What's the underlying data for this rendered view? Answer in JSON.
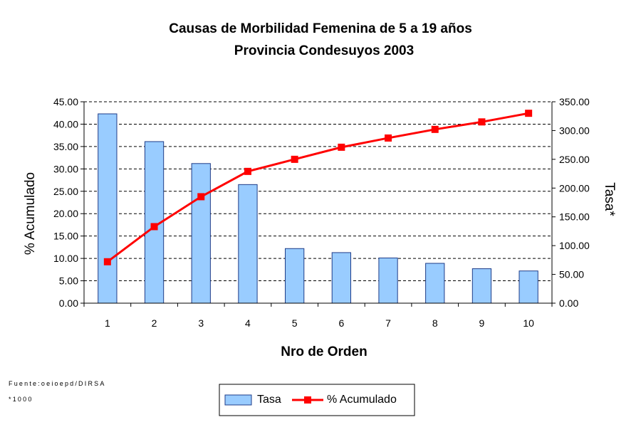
{
  "chart_data": {
    "type": "bar+line",
    "title": "Causas de Morbilidad Femenina de 5 a 19 años",
    "subtitle": "Provincia Condesuyos 2003",
    "xlabel": "Nro de Orden",
    "ylabel_left": "% Acumulado",
    "ylabel_right": "Tasa*",
    "categories": [
      "1",
      "2",
      "3",
      "4",
      "5",
      "6",
      "7",
      "8",
      "9",
      "10"
    ],
    "ylim_left": [
      0,
      45
    ],
    "yticks_left": [
      "0.00",
      "5.00",
      "10.00",
      "15.00",
      "20.00",
      "25.00",
      "30.00",
      "35.00",
      "40.00",
      "45.00"
    ],
    "ylim_right": [
      0,
      350
    ],
    "yticks_right": [
      "0.00",
      "50.00",
      "100.00",
      "150.00",
      "200.00",
      "250.00",
      "300.00",
      "350.00"
    ],
    "series": [
      {
        "name": "Tasa",
        "type": "bar",
        "axis": "left",
        "color": "#99CCFF",
        "edge": "#1F3C88",
        "values": [
          42.3,
          36.1,
          31.2,
          26.5,
          12.2,
          11.3,
          10.1,
          8.9,
          7.7,
          7.2
        ]
      },
      {
        "name": "% Acumulado",
        "type": "line",
        "axis": "right",
        "color": "#FF0000",
        "marker": "square",
        "values": [
          72,
          133,
          185,
          229,
          250,
          271,
          287,
          302,
          315,
          330
        ]
      }
    ],
    "grid": true,
    "legend": "bottom-center",
    "legend_labels": [
      "Tasa",
      "% Acumulado"
    ]
  },
  "footnotes": {
    "source": "Fuente:oeioepd/DIRSA",
    "rate_note": "*1000"
  }
}
